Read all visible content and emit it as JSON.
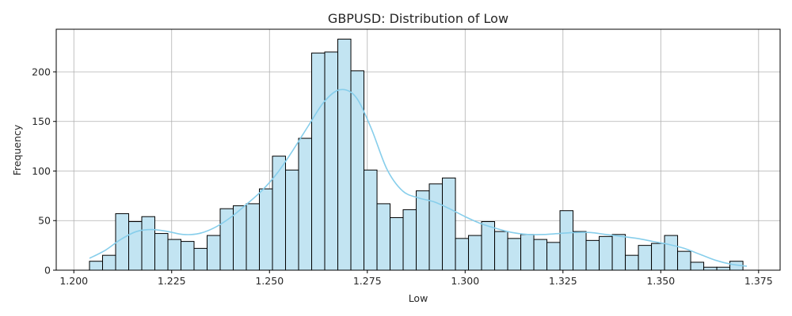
{
  "chart_data": {
    "type": "bar",
    "title": "GBPUSD: Distribution of Low",
    "xlabel": "Low",
    "ylabel": "Frequency",
    "xlim": [
      1.1955,
      1.3805
    ],
    "ylim": [
      0,
      243
    ],
    "xticks": [
      1.2,
      1.225,
      1.25,
      1.275,
      1.3,
      1.325,
      1.35,
      1.375
    ],
    "xtick_labels": [
      "1.200",
      "1.225",
      "1.250",
      "1.275",
      "1.300",
      "1.325",
      "1.350",
      "1.375"
    ],
    "yticks": [
      0,
      50,
      100,
      150,
      200
    ],
    "ytick_labels": [
      "0",
      "50",
      "100",
      "150",
      "200"
    ],
    "grid": true,
    "bin_start": 1.204,
    "bin_width": 0.00334,
    "values": [
      9,
      15,
      57,
      49,
      54,
      37,
      31,
      29,
      22,
      35,
      62,
      65,
      67,
      82,
      115,
      101,
      133,
      219,
      220,
      233,
      201,
      101,
      67,
      53,
      61,
      80,
      87,
      93,
      32,
      35,
      49,
      39,
      32,
      36,
      31,
      28,
      60,
      39,
      30,
      34,
      36,
      15,
      25,
      27,
      35,
      19,
      8,
      3,
      3,
      9
    ],
    "kde": {
      "x": [
        1.204,
        1.208,
        1.212,
        1.216,
        1.22,
        1.224,
        1.228,
        1.232,
        1.236,
        1.24,
        1.244,
        1.248,
        1.252,
        1.256,
        1.26,
        1.264,
        1.268,
        1.272,
        1.276,
        1.28,
        1.284,
        1.288,
        1.292,
        1.296,
        1.3,
        1.304,
        1.308,
        1.312,
        1.316,
        1.32,
        1.324,
        1.328,
        1.332,
        1.336,
        1.34,
        1.344,
        1.348,
        1.352,
        1.356,
        1.36,
        1.364,
        1.368,
        1.372
      ],
      "y": [
        12,
        20,
        31,
        39,
        41,
        39,
        36,
        37,
        43,
        53,
        66,
        80,
        98,
        121,
        146,
        170,
        182,
        175,
        143,
        102,
        80,
        73,
        69,
        62,
        54,
        47,
        42,
        38,
        36,
        36,
        37,
        38,
        38,
        36,
        34,
        32,
        29,
        26,
        22,
        16,
        10,
        6,
        4
      ]
    },
    "colors": {
      "bar_fill": "#c2e4f2",
      "bar_edge": "#000000",
      "kde_line": "#87ceeb",
      "grid": "#b0b0b0",
      "axis": "#000000"
    }
  }
}
